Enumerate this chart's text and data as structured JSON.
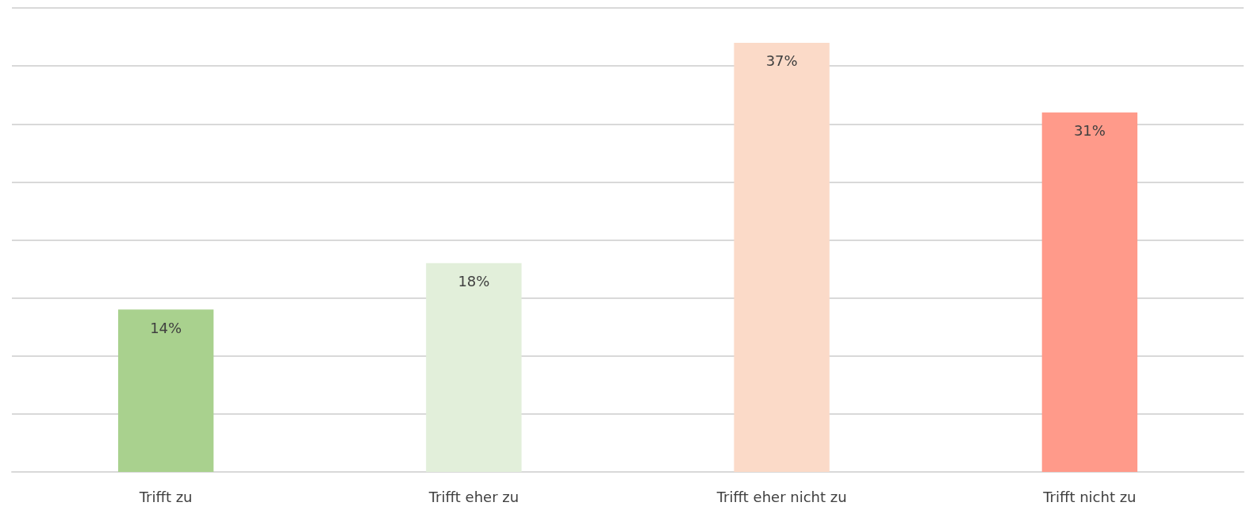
{
  "chart_data": {
    "type": "bar",
    "categories": [
      "Trifft zu",
      "Trifft eher zu",
      "Trifft eher nicht zu",
      "Trifft nicht zu"
    ],
    "values": [
      14,
      18,
      37,
      31
    ],
    "colors": [
      "#a9d18e",
      "#e2efda",
      "#fbdac8",
      "#ff9a8a"
    ],
    "value_labels": [
      "14%",
      "18%",
      "37%",
      "31%"
    ],
    "ylim": [
      0,
      40
    ],
    "yticks": [
      {
        "value": 0,
        "label": null
      },
      {
        "value": 5,
        "label": null
      },
      {
        "value": 10,
        "label": null
      },
      {
        "value": 15,
        "label": null
      },
      {
        "value": 20,
        "label": null
      },
      {
        "value": 25,
        "label": null
      },
      {
        "value": 30,
        "label": null
      },
      {
        "value": 35,
        "label": null
      },
      {
        "value": 40,
        "label": null
      }
    ],
    "grid": true
  }
}
